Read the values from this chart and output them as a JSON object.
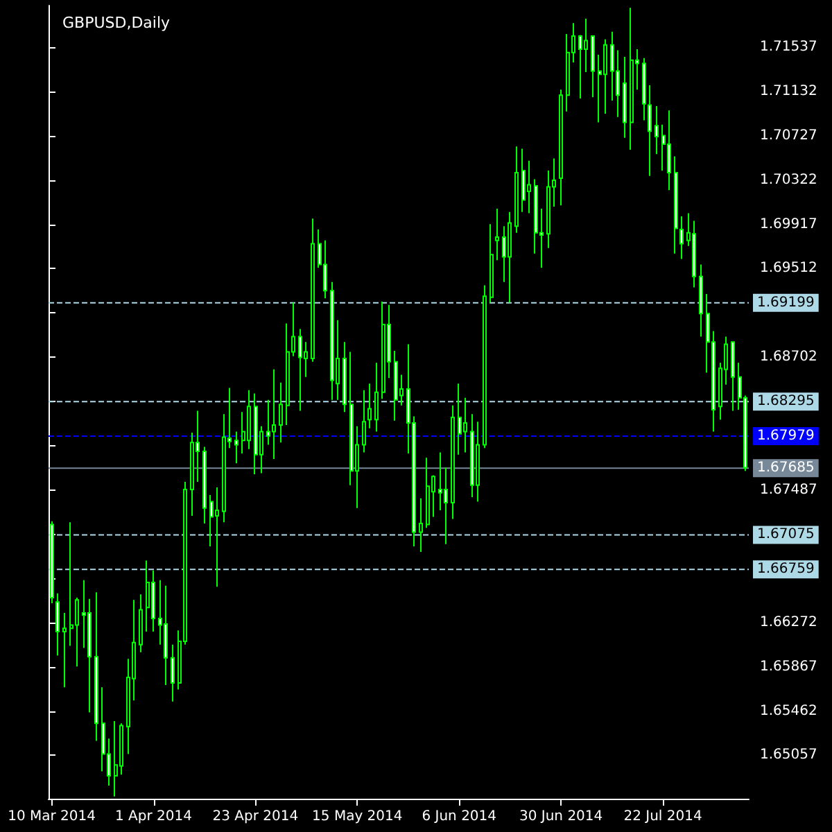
{
  "chart_data": {
    "type": "candlestick",
    "title": "GBPUSD,Daily",
    "color": "#00ff00",
    "categories": [
      "10 Mar 2014",
      null,
      null,
      null,
      null,
      null,
      null,
      null,
      null,
      null,
      null,
      null,
      null,
      null,
      null,
      null,
      "1 Apr 2014",
      null,
      null,
      null,
      null,
      null,
      null,
      null,
      null,
      null,
      null,
      null,
      null,
      null,
      null,
      null,
      "23 Apr 2014",
      null,
      null,
      null,
      null,
      null,
      null,
      null,
      null,
      null,
      null,
      null,
      null,
      null,
      null,
      null,
      "15 May 2014",
      null,
      null,
      null,
      null,
      null,
      null,
      null,
      null,
      null,
      null,
      null,
      null,
      null,
      null,
      null,
      "6 Jun 2014",
      null,
      null,
      null,
      null,
      null,
      null,
      null,
      null,
      null,
      null,
      null,
      null,
      null,
      null,
      null,
      "30 Jun 2014",
      null,
      null,
      null,
      null,
      null,
      null,
      null,
      null,
      null,
      null,
      null,
      null,
      null,
      null,
      null,
      "22 Jul 2014",
      null,
      null,
      null,
      null,
      null,
      null,
      null,
      null,
      null,
      null,
      null,
      null,
      null
    ],
    "ohlc": [
      [
        1.6717,
        1.672,
        1.6645,
        1.665
      ],
      [
        1.6646,
        1.6654,
        1.6597,
        1.6619
      ],
      [
        1.6619,
        1.6636,
        1.6568,
        1.6622
      ],
      [
        1.6622,
        1.6719,
        1.6606,
        1.6625
      ],
      [
        1.6625,
        1.665,
        1.6587,
        1.6648
      ],
      [
        1.6636,
        1.6666,
        1.6604,
        1.6634
      ],
      [
        1.6636,
        1.6649,
        1.6545,
        1.6596
      ],
      [
        1.6596,
        1.6655,
        1.6519,
        1.6535
      ],
      [
        1.6535,
        1.6568,
        1.6491,
        1.6507
      ],
      [
        1.6507,
        1.6521,
        1.6478,
        1.6487
      ],
      [
        1.6487,
        1.6537,
        1.6468,
        1.6497
      ],
      [
        1.6496,
        1.6535,
        1.6488,
        1.6533
      ],
      [
        1.6532,
        1.6594,
        1.6507,
        1.6577
      ],
      [
        1.6576,
        1.6648,
        1.6556,
        1.6609
      ],
      [
        1.6607,
        1.6653,
        1.66,
        1.6639
      ],
      [
        1.6641,
        1.6684,
        1.6619,
        1.6664
      ],
      [
        1.6664,
        1.6675,
        1.6619,
        1.6631
      ],
      [
        1.6631,
        1.6666,
        1.6607,
        1.6625
      ],
      [
        1.6626,
        1.6661,
        1.657,
        1.6595
      ],
      [
        1.6595,
        1.6607,
        1.6555,
        1.6572
      ],
      [
        1.6572,
        1.662,
        1.6566,
        1.661
      ],
      [
        1.661,
        1.6756,
        1.6607,
        1.6749
      ],
      [
        1.6749,
        1.6801,
        1.6725,
        1.6792
      ],
      [
        1.6792,
        1.6821,
        1.6756,
        1.6784
      ],
      [
        1.6784,
        1.6788,
        1.6718,
        1.6732
      ],
      [
        1.6738,
        1.6744,
        1.6697,
        1.6724
      ],
      [
        1.6725,
        1.6751,
        1.666,
        1.673
      ],
      [
        1.6729,
        1.6818,
        1.6719,
        1.6797
      ],
      [
        1.6796,
        1.6842,
        1.6787,
        1.6793
      ],
      [
        1.6794,
        1.6802,
        1.6773,
        1.679
      ],
      [
        1.6794,
        1.682,
        1.6782,
        1.6802
      ],
      [
        1.6794,
        1.684,
        1.6786,
        1.6825
      ],
      [
        1.6825,
        1.6837,
        1.6763,
        1.6781
      ],
      [
        1.6781,
        1.6807,
        1.6764,
        1.6802
      ],
      [
        1.6802,
        1.6831,
        1.679,
        1.6798
      ],
      [
        1.6802,
        1.6859,
        1.6777,
        1.6808
      ],
      [
        1.6808,
        1.6847,
        1.6792,
        1.6827
      ],
      [
        1.6826,
        1.6901,
        1.6808,
        1.6875
      ],
      [
        1.6875,
        1.692,
        1.6871,
        1.6889
      ],
      [
        1.6889,
        1.6896,
        1.6821,
        1.687
      ],
      [
        1.6869,
        1.6884,
        1.6852,
        1.6875
      ],
      [
        1.6869,
        1.6997,
        1.6866,
        1.6974
      ],
      [
        1.6974,
        1.6987,
        1.6952,
        1.6955
      ],
      [
        1.6955,
        1.6977,
        1.6924,
        1.6931
      ],
      [
        1.6931,
        1.6939,
        1.6831,
        1.6849
      ],
      [
        1.6846,
        1.6904,
        1.6831,
        1.6869
      ],
      [
        1.6869,
        1.6884,
        1.682,
        1.6827
      ],
      [
        1.6827,
        1.6875,
        1.6753,
        1.6766
      ],
      [
        1.6766,
        1.6807,
        1.6732,
        1.679
      ],
      [
        1.679,
        1.684,
        1.6783,
        1.6811
      ],
      [
        1.6813,
        1.6846,
        1.6805,
        1.6823
      ],
      [
        1.6813,
        1.6865,
        1.6802,
        1.6838
      ],
      [
        1.6838,
        1.6921,
        1.6832,
        1.69
      ],
      [
        1.69,
        1.6918,
        1.6851,
        1.6866
      ],
      [
        1.6866,
        1.6876,
        1.6812,
        1.6831
      ],
      [
        1.6835,
        1.6854,
        1.6826,
        1.6841
      ],
      [
        1.6841,
        1.6882,
        1.6782,
        1.681
      ],
      [
        1.681,
        1.6816,
        1.6697,
        1.671
      ],
      [
        1.671,
        1.6741,
        1.6692,
        1.6718
      ],
      [
        1.6717,
        1.6778,
        1.6714,
        1.6752
      ],
      [
        1.6747,
        1.6762,
        1.6724,
        1.6761
      ],
      [
        1.6749,
        1.6783,
        1.673,
        1.6746
      ],
      [
        1.6749,
        1.6769,
        1.6699,
        1.6737
      ],
      [
        1.6737,
        1.6826,
        1.6722,
        1.6815
      ],
      [
        1.6815,
        1.6846,
        1.6781,
        1.68
      ],
      [
        1.6802,
        1.6833,
        1.6783,
        1.681
      ],
      [
        1.6802,
        1.6818,
        1.6742,
        1.6753
      ],
      [
        1.6753,
        1.6811,
        1.6738,
        1.679
      ],
      [
        1.679,
        1.6936,
        1.6787,
        1.6926
      ],
      [
        1.6925,
        1.6992,
        1.692,
        1.6964
      ],
      [
        1.6977,
        1.7006,
        1.6959,
        1.698
      ],
      [
        1.698,
        1.699,
        1.6939,
        1.6962
      ],
      [
        1.6962,
        1.7003,
        1.692,
        1.6993
      ],
      [
        1.699,
        1.7063,
        1.6984,
        1.7039
      ],
      [
        1.7041,
        1.7061,
        1.7003,
        1.7014
      ],
      [
        1.7022,
        1.705,
        1.7002,
        1.7028
      ],
      [
        1.7027,
        1.7033,
        1.6965,
        1.6984
      ],
      [
        1.6984,
        1.7006,
        1.6952,
        1.6982
      ],
      [
        1.6983,
        1.7041,
        1.697,
        1.7026
      ],
      [
        1.7026,
        1.7052,
        1.7008,
        1.7032
      ],
      [
        1.7034,
        1.7115,
        1.7009,
        1.711
      ],
      [
        1.711,
        1.7166,
        1.7095,
        1.7149
      ],
      [
        1.7149,
        1.7176,
        1.714,
        1.7164
      ],
      [
        1.7164,
        1.7165,
        1.7107,
        1.7152
      ],
      [
        1.7152,
        1.718,
        1.7131,
        1.716
      ],
      [
        1.7164,
        1.7164,
        1.7108,
        1.7132
      ],
      [
        1.7132,
        1.7147,
        1.7085,
        1.7129
      ],
      [
        1.7129,
        1.7161,
        1.7093,
        1.7156
      ],
      [
        1.7156,
        1.7168,
        1.7105,
        1.7132
      ],
      [
        1.7132,
        1.7151,
        1.709,
        1.711
      ],
      [
        1.7121,
        1.7145,
        1.7071,
        1.7085
      ],
      [
        1.7085,
        1.719,
        1.706,
        1.7142
      ],
      [
        1.7142,
        1.7152,
        1.7115,
        1.7139
      ],
      [
        1.7139,
        1.7144,
        1.7087,
        1.7102
      ],
      [
        1.7101,
        1.7119,
        1.7036,
        1.7077
      ],
      [
        1.7082,
        1.71,
        1.7056,
        1.7072
      ],
      [
        1.7073,
        1.7083,
        1.7041,
        1.7065
      ],
      [
        1.7065,
        1.7096,
        1.7023,
        1.7039
      ],
      [
        1.7039,
        1.7054,
        1.6965,
        1.6988
      ],
      [
        1.6987,
        1.6999,
        1.696,
        1.6974
      ],
      [
        1.6977,
        1.7002,
        1.6972,
        1.6984
      ],
      [
        1.6983,
        1.6995,
        1.6934,
        1.6944
      ],
      [
        1.6944,
        1.6955,
        1.6889,
        1.691
      ],
      [
        1.691,
        1.6928,
        1.6856,
        1.6884
      ],
      [
        1.6884,
        1.6894,
        1.6802,
        1.6822
      ],
      [
        1.6825,
        1.6865,
        1.6813,
        1.686
      ],
      [
        1.6859,
        1.6889,
        1.6845,
        1.6882
      ],
      [
        1.6884,
        1.6884,
        1.6821,
        1.6852
      ],
      [
        1.6852,
        1.6865,
        1.6822,
        1.6833
      ],
      [
        1.6833,
        1.6835,
        1.6766,
        1.6769
      ]
    ],
    "ylim": [
      1.6466,
      1.7192
    ],
    "yticks": [
      1.65057,
      1.65462,
      1.65867,
      1.66272,
      {
        "value": 1.66677,
        "label": null
      },
      {
        "value": 1.67082,
        "label": null
      },
      1.67487,
      {
        "value": 1.67892,
        "label": null
      },
      {
        "value": 1.68297,
        "label": null
      },
      1.68702,
      {
        "value": 1.69107,
        "label": null
      },
      1.69512,
      1.69917,
      1.70322,
      1.70727,
      1.71132,
      1.71537
    ],
    "ref_lines": [
      {
        "axis": "y",
        "value": 1.69199,
        "label": "1.69199",
        "color": "#add8e6",
        "line_style": "dashed"
      },
      {
        "axis": "y",
        "value": 1.68295,
        "label": "1.68295",
        "color": "#add8e6",
        "line_style": "dashed"
      },
      {
        "axis": "y",
        "value": 1.67979,
        "label": "1.67979",
        "color": "#0000ff",
        "line_style": "dashed"
      },
      {
        "axis": "y",
        "value": 1.67685,
        "label": "1.67685",
        "color": "#778899",
        "line_style": "solid"
      },
      {
        "axis": "y",
        "value": 1.67075,
        "label": "1.67075",
        "color": "#add8e6",
        "line_style": "dashed"
      },
      {
        "axis": "y",
        "value": 1.66759,
        "label": "1.66759",
        "color": "#add8e6",
        "line_style": "dashed"
      }
    ],
    "grid": false
  }
}
